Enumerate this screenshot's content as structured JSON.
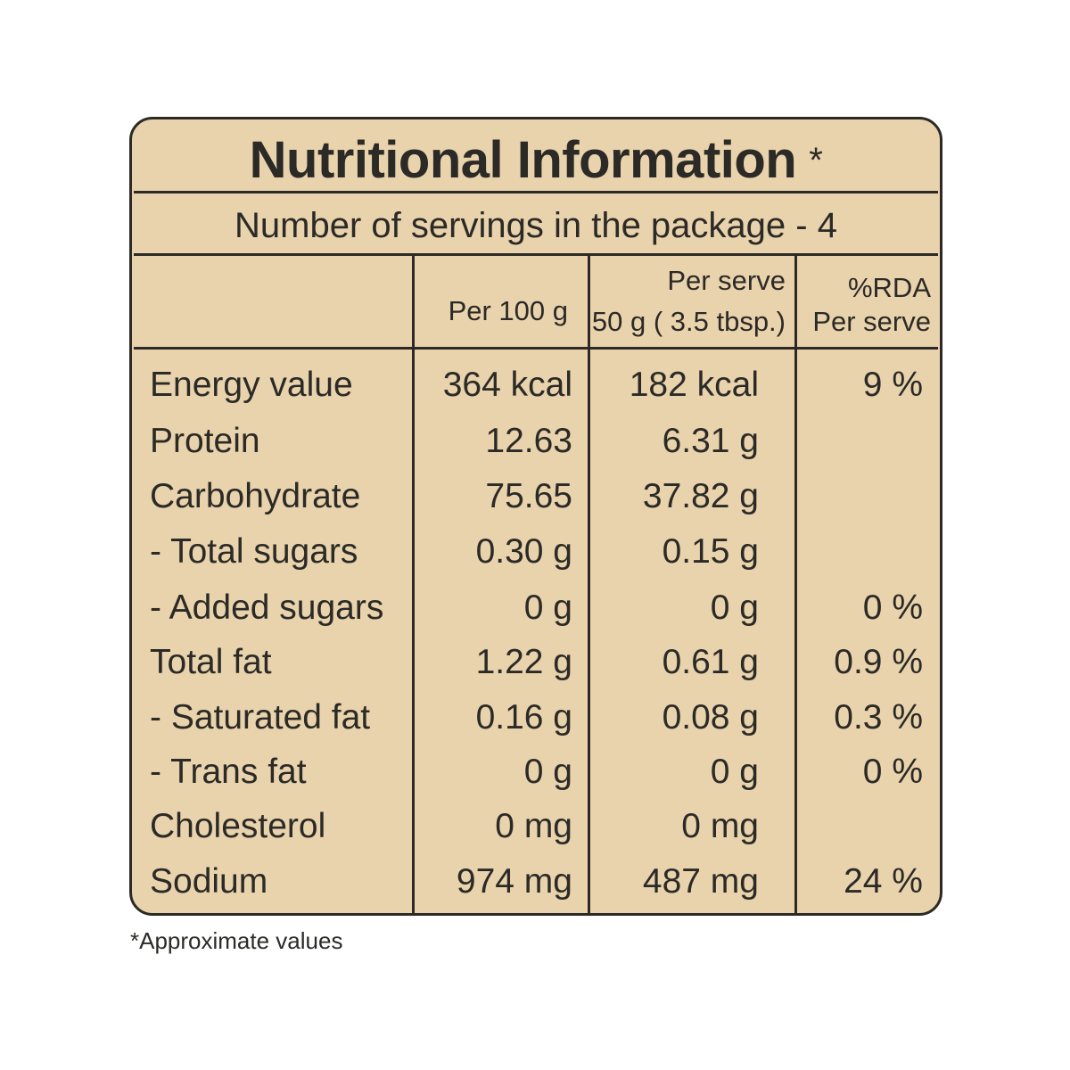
{
  "label": {
    "title": "Nutritional Information",
    "title_marker": "*",
    "servings_text": "Number of servings in the package - 4",
    "columns": {
      "per100": "Per 100 g",
      "perserve_line1": "Per serve",
      "perserve_line2": "50 g ( 3.5 tbsp.)",
      "rda_line1": "%RDA",
      "rda_line2": "Per serve"
    },
    "rows": [
      {
        "name": "Energy value",
        "per100": "364 kcal",
        "perserve": "182 kcal",
        "rda": "9 %"
      },
      {
        "name": "Protein",
        "per100": "12.63",
        "perserve": "6.31 g",
        "rda": ""
      },
      {
        "name": "Carbohydrate",
        "per100": "75.65",
        "perserve": "37.82 g",
        "rda": ""
      },
      {
        "name": "- Total sugars",
        "per100": "0.30 g",
        "perserve": "0.15 g",
        "rda": ""
      },
      {
        "name": "- Added sugars",
        "per100": "0 g",
        "perserve": "0 g",
        "rda": "0 %"
      },
      {
        "name": "Total fat",
        "per100": "1.22 g",
        "perserve": "0.61 g",
        "rda": "0.9 %"
      },
      {
        "name": "- Saturated fat",
        "per100": "0.16 g",
        "perserve": "0.08 g",
        "rda": "0.3 %"
      },
      {
        "name": "- Trans fat",
        "per100": "0 g",
        "perserve": "0 g",
        "rda": "0 %"
      },
      {
        "name": "Cholesterol",
        "per100": "0 mg",
        "perserve": "0 mg",
        "rda": ""
      },
      {
        "name": "Sodium",
        "per100": "974 mg",
        "perserve": "487 mg",
        "rda": "24 %"
      }
    ],
    "colors": {
      "panel_background": "#e9d3ad",
      "ink": "#2b2a26"
    }
  },
  "footnote": "*Approximate values"
}
